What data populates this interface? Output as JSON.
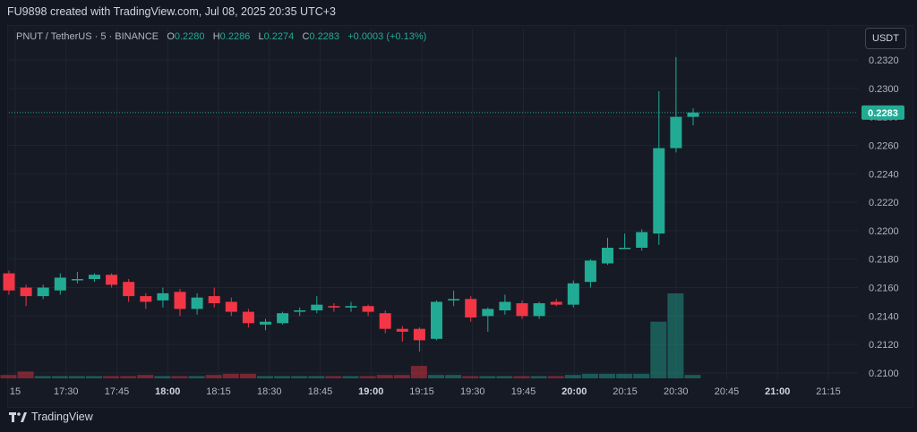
{
  "caption": "FU9898 created with TradingView.com, Jul 08, 2025 20:35 UTC+3",
  "legend": {
    "symbol": "PNUT / TetherUS · 5 · BINANCE",
    "o_label": "O",
    "o_value": "0.2280",
    "h_label": "H",
    "h_value": "0.2286",
    "l_label": "L",
    "l_value": "0.2274",
    "c_label": "C",
    "c_value": "0.2283",
    "change": "+0.0003 (+0.13%)"
  },
  "unit_button": "USDT",
  "footer": "TradingView",
  "colors": {
    "up": "#22ab94",
    "down": "#f23645",
    "grid": "#202430",
    "text": "#b2b5be"
  },
  "chart_data": {
    "type": "candlestick",
    "interval": "5m",
    "last_price": 0.2283,
    "last_price_label": "0.2283",
    "ylim": [
      0.2093,
      0.2335
    ],
    "y_ticks": [
      "0.2100",
      "0.2120",
      "0.2140",
      "0.2160",
      "0.2180",
      "0.2200",
      "0.2220",
      "0.2240",
      "0.2260",
      "0.2280",
      "0.2300",
      "0.2320"
    ],
    "x_ticks": [
      {
        "label": "15",
        "bold": false
      },
      {
        "label": "17:30",
        "bold": false
      },
      {
        "label": "17:45",
        "bold": false
      },
      {
        "label": "18:00",
        "bold": true
      },
      {
        "label": "18:15",
        "bold": false
      },
      {
        "label": "18:30",
        "bold": false
      },
      {
        "label": "18:45",
        "bold": false
      },
      {
        "label": "19:00",
        "bold": true
      },
      {
        "label": "19:15",
        "bold": false
      },
      {
        "label": "19:30",
        "bold": false
      },
      {
        "label": "19:45",
        "bold": false
      },
      {
        "label": "20:00",
        "bold": true
      },
      {
        "label": "20:15",
        "bold": false
      },
      {
        "label": "20:30",
        "bold": false
      },
      {
        "label": "20:45",
        "bold": false
      },
      {
        "label": "21:00",
        "bold": true
      },
      {
        "label": "21:15",
        "bold": false
      }
    ],
    "candles": [
      {
        "o": 0.217,
        "h": 0.2172,
        "l": 0.2155,
        "c": 0.2158
      },
      {
        "o": 0.216,
        "h": 0.2162,
        "l": 0.2147,
        "c": 0.2154
      },
      {
        "o": 0.2154,
        "h": 0.2162,
        "l": 0.2152,
        "c": 0.216
      },
      {
        "o": 0.2158,
        "h": 0.217,
        "l": 0.2155,
        "c": 0.2167
      },
      {
        "o": 0.2166,
        "h": 0.2171,
        "l": 0.2163,
        "c": 0.2166
      },
      {
        "o": 0.2166,
        "h": 0.217,
        "l": 0.2164,
        "c": 0.2169
      },
      {
        "o": 0.2169,
        "h": 0.217,
        "l": 0.216,
        "c": 0.2162
      },
      {
        "o": 0.2164,
        "h": 0.2166,
        "l": 0.215,
        "c": 0.2154
      },
      {
        "o": 0.2154,
        "h": 0.2156,
        "l": 0.2145,
        "c": 0.215
      },
      {
        "o": 0.2151,
        "h": 0.216,
        "l": 0.2146,
        "c": 0.2156
      },
      {
        "o": 0.2157,
        "h": 0.2159,
        "l": 0.214,
        "c": 0.2145
      },
      {
        "o": 0.2145,
        "h": 0.2156,
        "l": 0.2141,
        "c": 0.2153
      },
      {
        "o": 0.2154,
        "h": 0.216,
        "l": 0.2146,
        "c": 0.2149
      },
      {
        "o": 0.215,
        "h": 0.2153,
        "l": 0.214,
        "c": 0.2143
      },
      {
        "o": 0.2143,
        "h": 0.2145,
        "l": 0.2132,
        "c": 0.2135
      },
      {
        "o": 0.2134,
        "h": 0.2138,
        "l": 0.213,
        "c": 0.2136
      },
      {
        "o": 0.2135,
        "h": 0.2143,
        "l": 0.2134,
        "c": 0.2142
      },
      {
        "o": 0.2143,
        "h": 0.2146,
        "l": 0.214,
        "c": 0.2144
      },
      {
        "o": 0.2144,
        "h": 0.2154,
        "l": 0.2142,
        "c": 0.2148
      },
      {
        "o": 0.2147,
        "h": 0.2149,
        "l": 0.2143,
        "c": 0.2146
      },
      {
        "o": 0.2146,
        "h": 0.215,
        "l": 0.2143,
        "c": 0.2147
      },
      {
        "o": 0.2147,
        "h": 0.2148,
        "l": 0.214,
        "c": 0.2143
      },
      {
        "o": 0.2142,
        "h": 0.2144,
        "l": 0.2128,
        "c": 0.2131
      },
      {
        "o": 0.2131,
        "h": 0.2133,
        "l": 0.2122,
        "c": 0.2129
      },
      {
        "o": 0.2131,
        "h": 0.2132,
        "l": 0.2115,
        "c": 0.2123
      },
      {
        "o": 0.2124,
        "h": 0.2151,
        "l": 0.2123,
        "c": 0.215
      },
      {
        "o": 0.2151,
        "h": 0.2158,
        "l": 0.2147,
        "c": 0.2152
      },
      {
        "o": 0.2152,
        "h": 0.2154,
        "l": 0.2136,
        "c": 0.2139
      },
      {
        "o": 0.214,
        "h": 0.2146,
        "l": 0.2129,
        "c": 0.2145
      },
      {
        "o": 0.2144,
        "h": 0.2155,
        "l": 0.2141,
        "c": 0.215
      },
      {
        "o": 0.2149,
        "h": 0.2151,
        "l": 0.2138,
        "c": 0.214
      },
      {
        "o": 0.214,
        "h": 0.215,
        "l": 0.2138,
        "c": 0.2149
      },
      {
        "o": 0.215,
        "h": 0.2152,
        "l": 0.2147,
        "c": 0.2148
      },
      {
        "o": 0.2148,
        "h": 0.2165,
        "l": 0.2146,
        "c": 0.2163
      },
      {
        "o": 0.2164,
        "h": 0.218,
        "l": 0.216,
        "c": 0.2179
      },
      {
        "o": 0.2177,
        "h": 0.2195,
        "l": 0.2176,
        "c": 0.2188
      },
      {
        "o": 0.2188,
        "h": 0.2198,
        "l": 0.2187,
        "c": 0.2188
      },
      {
        "o": 0.2188,
        "h": 0.2201,
        "l": 0.2186,
        "c": 0.2199
      },
      {
        "o": 0.2198,
        "h": 0.2298,
        "l": 0.219,
        "c": 0.2258
      },
      {
        "o": 0.2258,
        "h": 0.2322,
        "l": 0.2255,
        "c": 0.228
      },
      {
        "o": 0.228,
        "h": 0.2286,
        "l": 0.2274,
        "c": 0.2283
      }
    ],
    "volume": [
      {
        "v": 3,
        "up": false
      },
      {
        "v": 6,
        "up": false
      },
      {
        "v": 2,
        "up": true
      },
      {
        "v": 2,
        "up": true
      },
      {
        "v": 2,
        "up": true
      },
      {
        "v": 2,
        "up": true
      },
      {
        "v": 2,
        "up": false
      },
      {
        "v": 2,
        "up": false
      },
      {
        "v": 3,
        "up": false
      },
      {
        "v": 2,
        "up": true
      },
      {
        "v": 2,
        "up": false
      },
      {
        "v": 2,
        "up": true
      },
      {
        "v": 3,
        "up": false
      },
      {
        "v": 4,
        "up": false
      },
      {
        "v": 4,
        "up": false
      },
      {
        "v": 2,
        "up": true
      },
      {
        "v": 2,
        "up": true
      },
      {
        "v": 2,
        "up": true
      },
      {
        "v": 2,
        "up": true
      },
      {
        "v": 2,
        "up": false
      },
      {
        "v": 2,
        "up": true
      },
      {
        "v": 2,
        "up": false
      },
      {
        "v": 3,
        "up": false
      },
      {
        "v": 3,
        "up": false
      },
      {
        "v": 11,
        "up": false
      },
      {
        "v": 3,
        "up": true
      },
      {
        "v": 3,
        "up": true
      },
      {
        "v": 2,
        "up": false
      },
      {
        "v": 2,
        "up": true
      },
      {
        "v": 2,
        "up": true
      },
      {
        "v": 2,
        "up": false
      },
      {
        "v": 2,
        "up": true
      },
      {
        "v": 2,
        "up": false
      },
      {
        "v": 3,
        "up": true
      },
      {
        "v": 4,
        "up": true
      },
      {
        "v": 4,
        "up": true
      },
      {
        "v": 4,
        "up": true
      },
      {
        "v": 4,
        "up": true
      },
      {
        "v": 50,
        "up": true
      },
      {
        "v": 75,
        "up": true
      },
      {
        "v": 3,
        "up": true
      }
    ]
  }
}
